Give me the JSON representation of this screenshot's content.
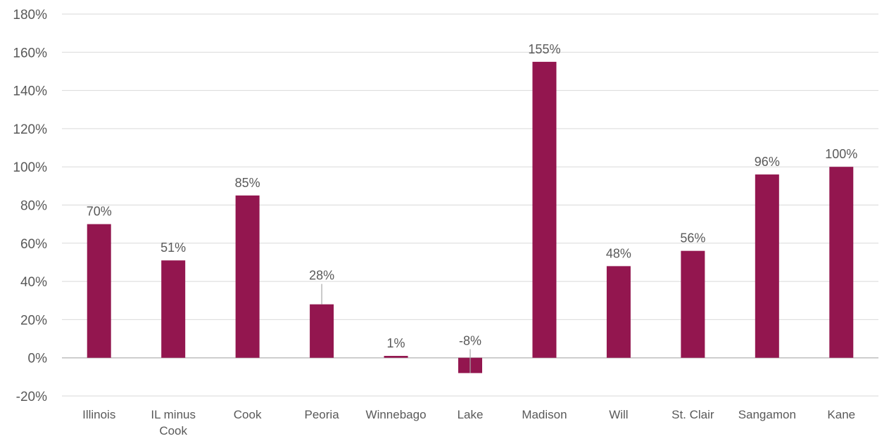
{
  "chart_data": {
    "type": "bar",
    "categories": [
      "Illinois",
      "IL minus Cook",
      "Cook",
      "Peoria",
      "Winnebago",
      "Lake",
      "Madison",
      "Will",
      "St. Clair",
      "Sangamon",
      "Kane"
    ],
    "values": [
      70,
      51,
      85,
      28,
      1,
      -8,
      155,
      48,
      56,
      96,
      100
    ],
    "data_labels": [
      "70%",
      "51%",
      "85%",
      "28%",
      "1%",
      "-8%",
      "155%",
      "48%",
      "56%",
      "96%",
      "100%"
    ],
    "y_ticks": [
      "-20%",
      "0%",
      "20%",
      "40%",
      "60%",
      "80%",
      "100%",
      "120%",
      "140%",
      "160%",
      "180%"
    ],
    "ylim": [
      -20,
      180
    ],
    "ytick_step": 20,
    "grid": true,
    "legend": "none",
    "bar_color": "#93164F",
    "grid_color": "#d9d9d9",
    "axis_color": "#bfbfbf",
    "text_color": "#595959",
    "leader_line_color": "#a6a6a6"
  }
}
